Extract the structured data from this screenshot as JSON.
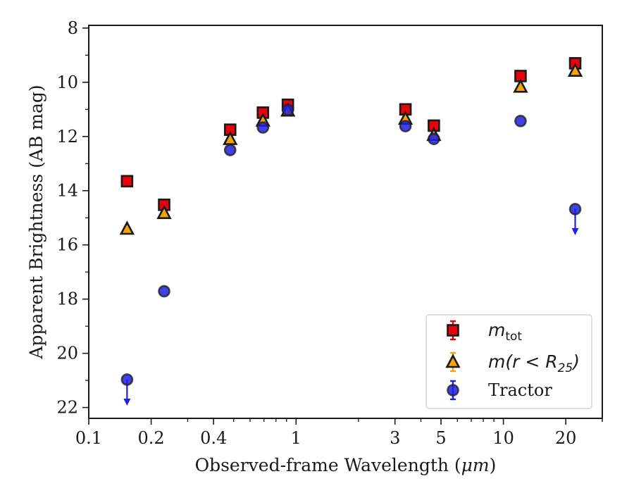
{
  "chart_data": {
    "type": "scatter",
    "xlabel_prefix": "Observed-frame Wavelength (",
    "xlabel_unit": "μm",
    "xlabel_suffix": ")",
    "ylabel": "Apparent Brightness (AB mag)",
    "x_scale": "log",
    "y_inverted": true,
    "xlim": [
      0.1,
      30
    ],
    "ylim": [
      22.4,
      7.9
    ],
    "x_ticks": [
      0.1,
      0.2,
      0.4,
      1,
      3,
      5,
      10,
      20
    ],
    "x_tick_labels": [
      "0.1",
      "0.2",
      "0.4",
      "1",
      "3",
      "5",
      "10",
      "20"
    ],
    "y_ticks": [
      8,
      10,
      12,
      14,
      16,
      18,
      20,
      22
    ],
    "y_tick_labels": [
      "8",
      "10",
      "12",
      "14",
      "16",
      "18",
      "20",
      "22"
    ],
    "grid": false,
    "legend_position": "bottom-right",
    "series": [
      {
        "name": "m_tot",
        "marker": "square",
        "color": "#e8000b",
        "x": [
          0.153,
          0.231,
          0.481,
          0.692,
          0.913,
          3.37,
          4.62,
          12.1,
          22.2
        ],
        "y": [
          13.65,
          14.52,
          11.75,
          11.12,
          10.83,
          11.0,
          11.6,
          9.77,
          9.3
        ],
        "upper_limits": []
      },
      {
        "name": "m(r<R25)",
        "marker": "triangle",
        "color": "#f5a30c",
        "x": [
          0.153,
          0.231,
          0.481,
          0.692,
          0.913,
          3.37,
          4.62,
          12.1,
          22.2
        ],
        "y": [
          15.41,
          14.83,
          12.1,
          11.42,
          11.05,
          11.35,
          11.95,
          10.17,
          9.58
        ],
        "upper_limits": []
      },
      {
        "name": "Tractor",
        "marker": "circle",
        "color": "#1f1fe6",
        "x": [
          0.153,
          0.231,
          0.481,
          0.692,
          0.913,
          3.37,
          4.62,
          12.1,
          22.2
        ],
        "y": [
          20.97,
          17.71,
          12.5,
          11.67,
          11.02,
          11.62,
          12.09,
          11.43,
          14.68
        ],
        "upper_limits": [
          0.153,
          22.2
        ]
      }
    ],
    "legend": [
      {
        "label_main": "m",
        "label_sub": "tot",
        "label_rest": ""
      },
      {
        "label_main": "m(r < R",
        "label_sub": "25",
        "label_rest": ")"
      },
      {
        "label_main": "Tractor",
        "label_sub": "",
        "label_rest": ""
      }
    ]
  }
}
